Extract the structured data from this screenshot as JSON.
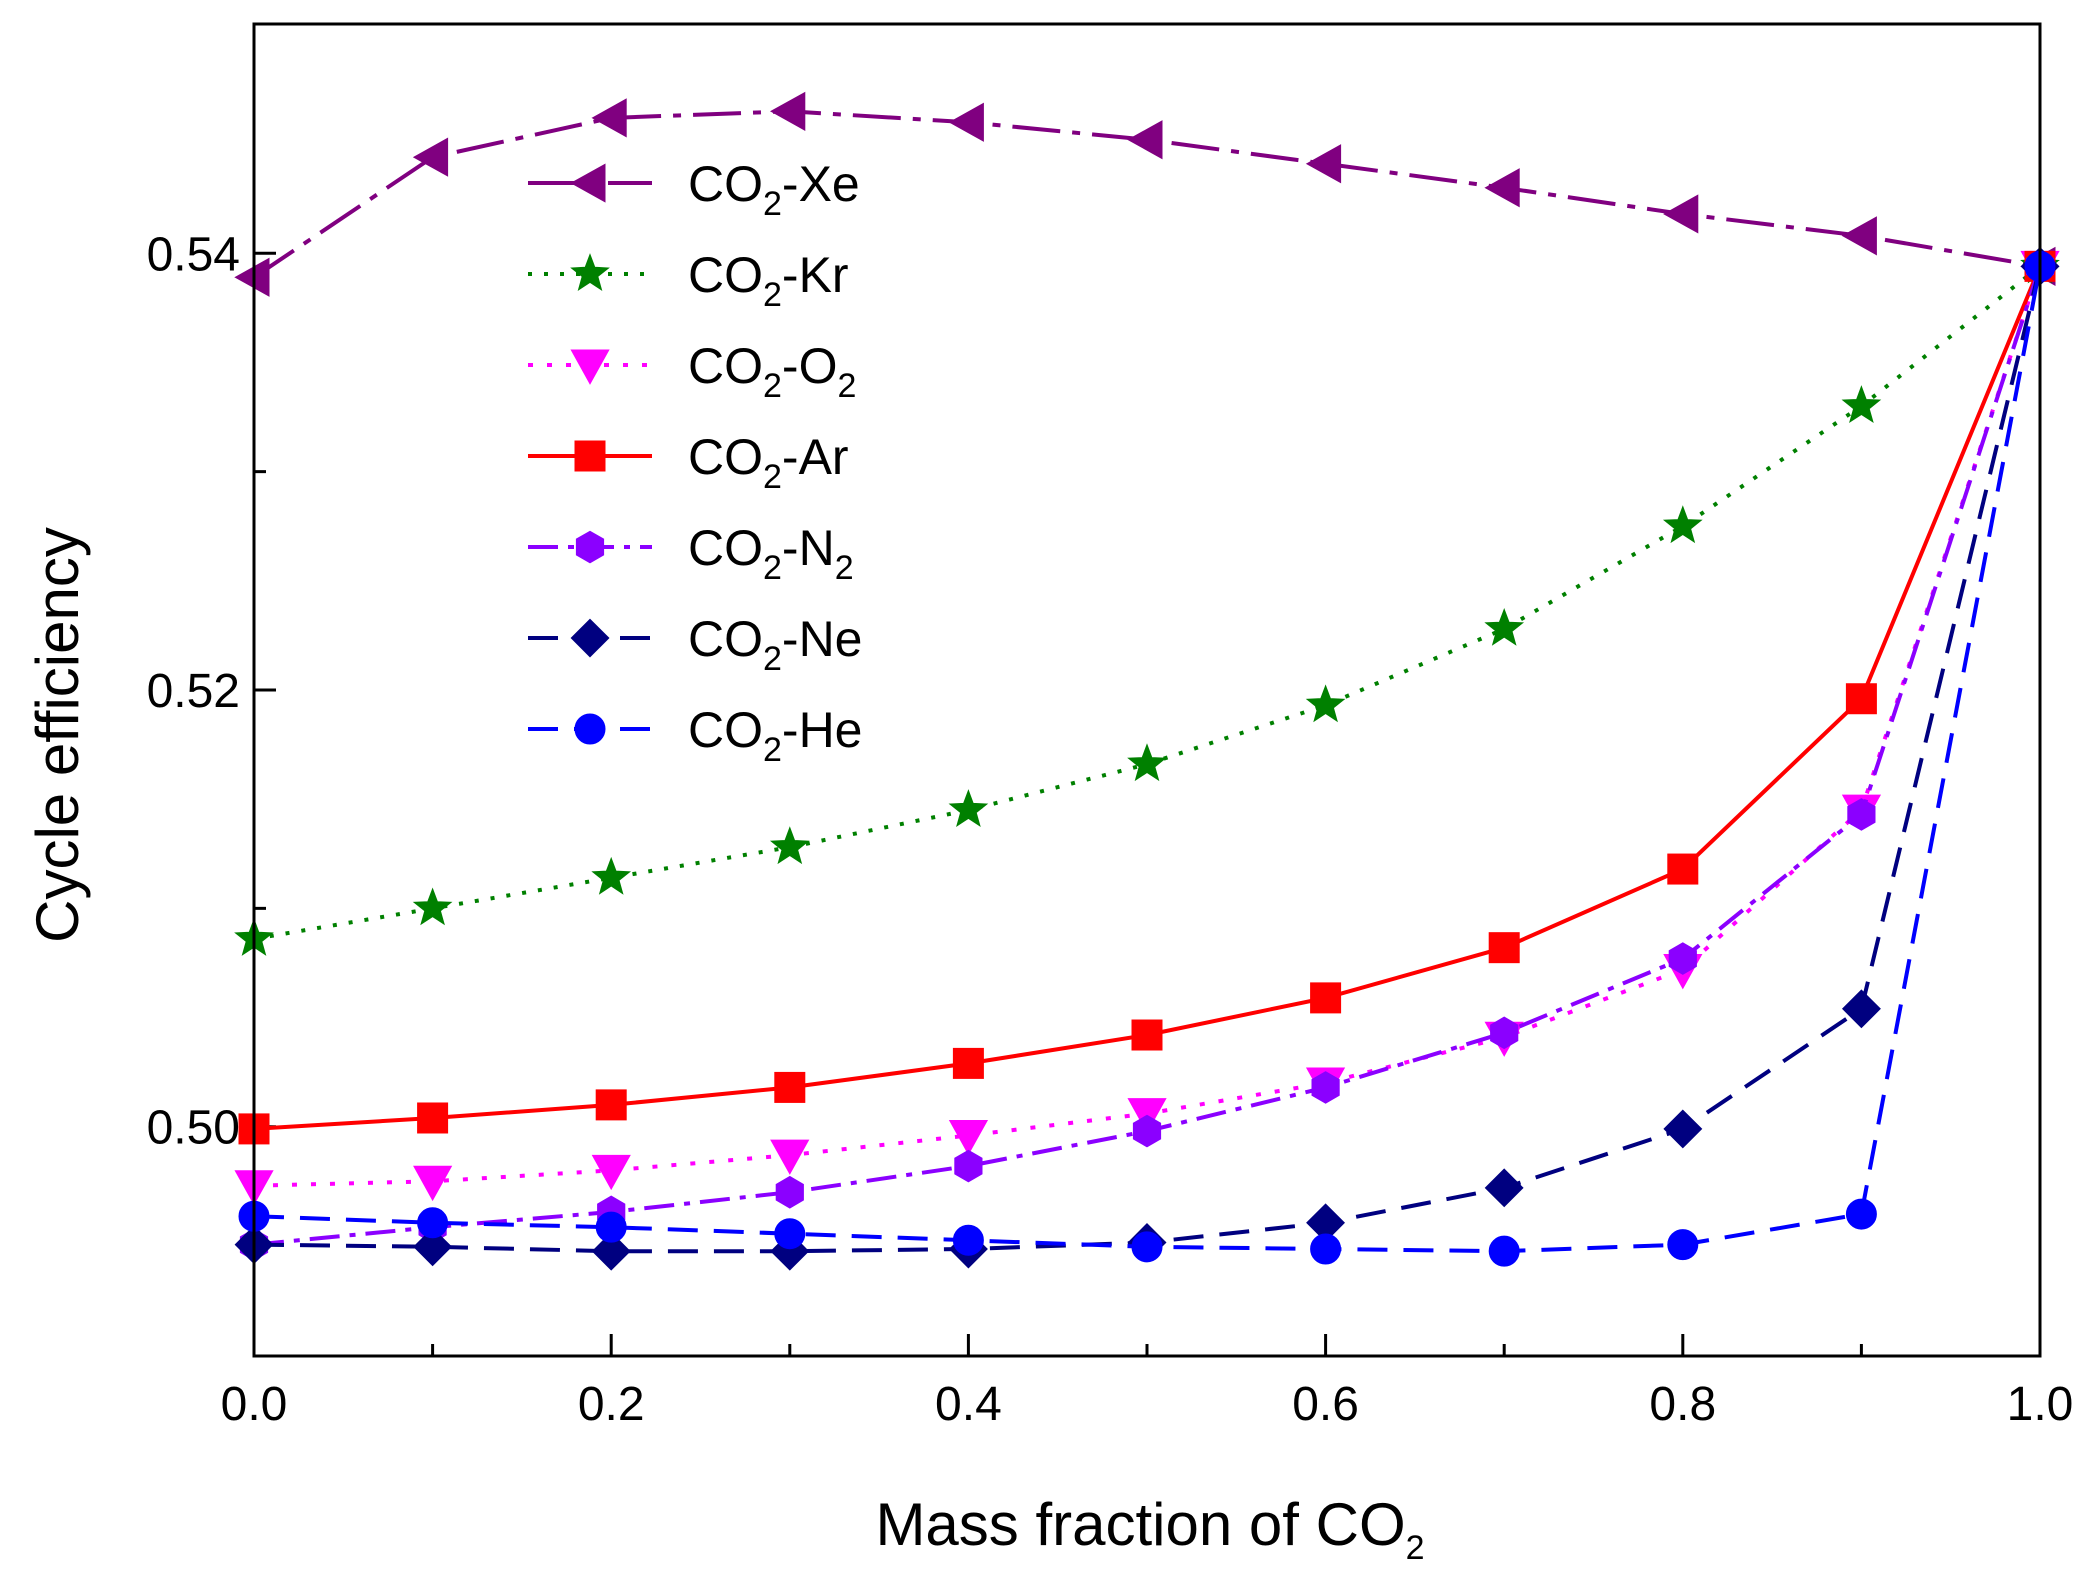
{
  "chart_data": {
    "type": "line",
    "title": "",
    "xlabel": "Mass fraction of CO",
    "xlabel_sub": "2",
    "ylabel": "Cycle efficiency",
    "xlim": [
      0.0,
      1.0
    ],
    "ylim": [
      0.4895,
      0.5505
    ],
    "x": [
      0.0,
      0.1,
      0.2,
      0.3,
      0.4,
      0.5,
      0.6,
      0.7,
      0.8,
      0.9,
      1.0
    ],
    "x_ticks": [
      0.0,
      0.2,
      0.4,
      0.6,
      0.8,
      1.0
    ],
    "x_tick_labels": [
      "0.0",
      "0.2",
      "0.4",
      "0.6",
      "0.8",
      "1.0"
    ],
    "x_minor_ticks": [
      0.1,
      0.3,
      0.5,
      0.7,
      0.9
    ],
    "y_ticks": [
      0.5,
      0.52,
      0.54
    ],
    "y_tick_labels": [
      "0.50",
      "0.52",
      "0.54"
    ],
    "y_minor_ticks": [
      0.51,
      0.53
    ],
    "grid": false,
    "legend_position": "top-left",
    "series": [
      {
        "id": "xe",
        "name": "CO",
        "sub": "2",
        "suffix": "-Xe",
        "suffix_sub": "",
        "color": "#800080",
        "marker": "triangle-left",
        "dash": "48 12 8 12",
        "values": [
          0.5389,
          0.5444,
          0.5462,
          0.5465,
          0.546,
          0.5452,
          0.5441,
          0.543,
          0.5418,
          0.5408,
          0.5394
        ]
      },
      {
        "id": "kr",
        "name": "CO",
        "sub": "2",
        "suffix": "-Kr",
        "suffix_sub": "",
        "color": "#008000",
        "marker": "star",
        "dash": "4 12",
        "values": [
          0.5086,
          0.51,
          0.5114,
          0.5128,
          0.5145,
          0.5166,
          0.5193,
          0.5228,
          0.5275,
          0.533,
          0.5394
        ]
      },
      {
        "id": "o2",
        "name": "CO",
        "sub": "2",
        "suffix": "-O",
        "suffix_sub": "2",
        "color": "#ff00ff",
        "marker": "triangle-down",
        "dash": "5 14",
        "values": [
          0.4973,
          0.4975,
          0.498,
          0.4987,
          0.4996,
          0.5006,
          0.502,
          0.5041,
          0.5072,
          0.5145,
          0.5394
        ]
      },
      {
        "id": "ar",
        "name": "CO",
        "sub": "2",
        "suffix": "-Ar",
        "suffix_sub": "",
        "color": "#ff0000",
        "marker": "square",
        "dash": "",
        "values": [
          0.4999,
          0.5004,
          0.501,
          0.5018,
          0.5029,
          0.5042,
          0.5059,
          0.5082,
          0.5118,
          0.5196,
          0.5394
        ]
      },
      {
        "id": "n2",
        "name": "CO",
        "sub": "2",
        "suffix": "-N",
        "suffix_sub": "2",
        "color": "#8b00ff",
        "marker": "hexagon",
        "dash": "30 10 6 10",
        "values": [
          0.4946,
          0.4954,
          0.4961,
          0.497,
          0.4982,
          0.4998,
          0.5018,
          0.5043,
          0.5077,
          0.5143,
          0.5394
        ]
      },
      {
        "id": "ne",
        "name": "CO",
        "sub": "2",
        "suffix": "-Ne",
        "suffix_sub": "",
        "color": "#000080",
        "marker": "diamond",
        "dash": "30 16",
        "values": [
          0.4946,
          0.4945,
          0.4943,
          0.4943,
          0.4944,
          0.4947,
          0.4956,
          0.4972,
          0.4999,
          0.5054,
          0.5394
        ]
      },
      {
        "id": "he",
        "name": "CO",
        "sub": "2",
        "suffix": "-He",
        "suffix_sub": "",
        "color": "#0000ff",
        "marker": "circle",
        "dash": "30 16",
        "values": [
          0.4959,
          0.4956,
          0.4954,
          0.4951,
          0.4948,
          0.4945,
          0.4944,
          0.4943,
          0.4946,
          0.496,
          0.5394
        ]
      }
    ]
  }
}
